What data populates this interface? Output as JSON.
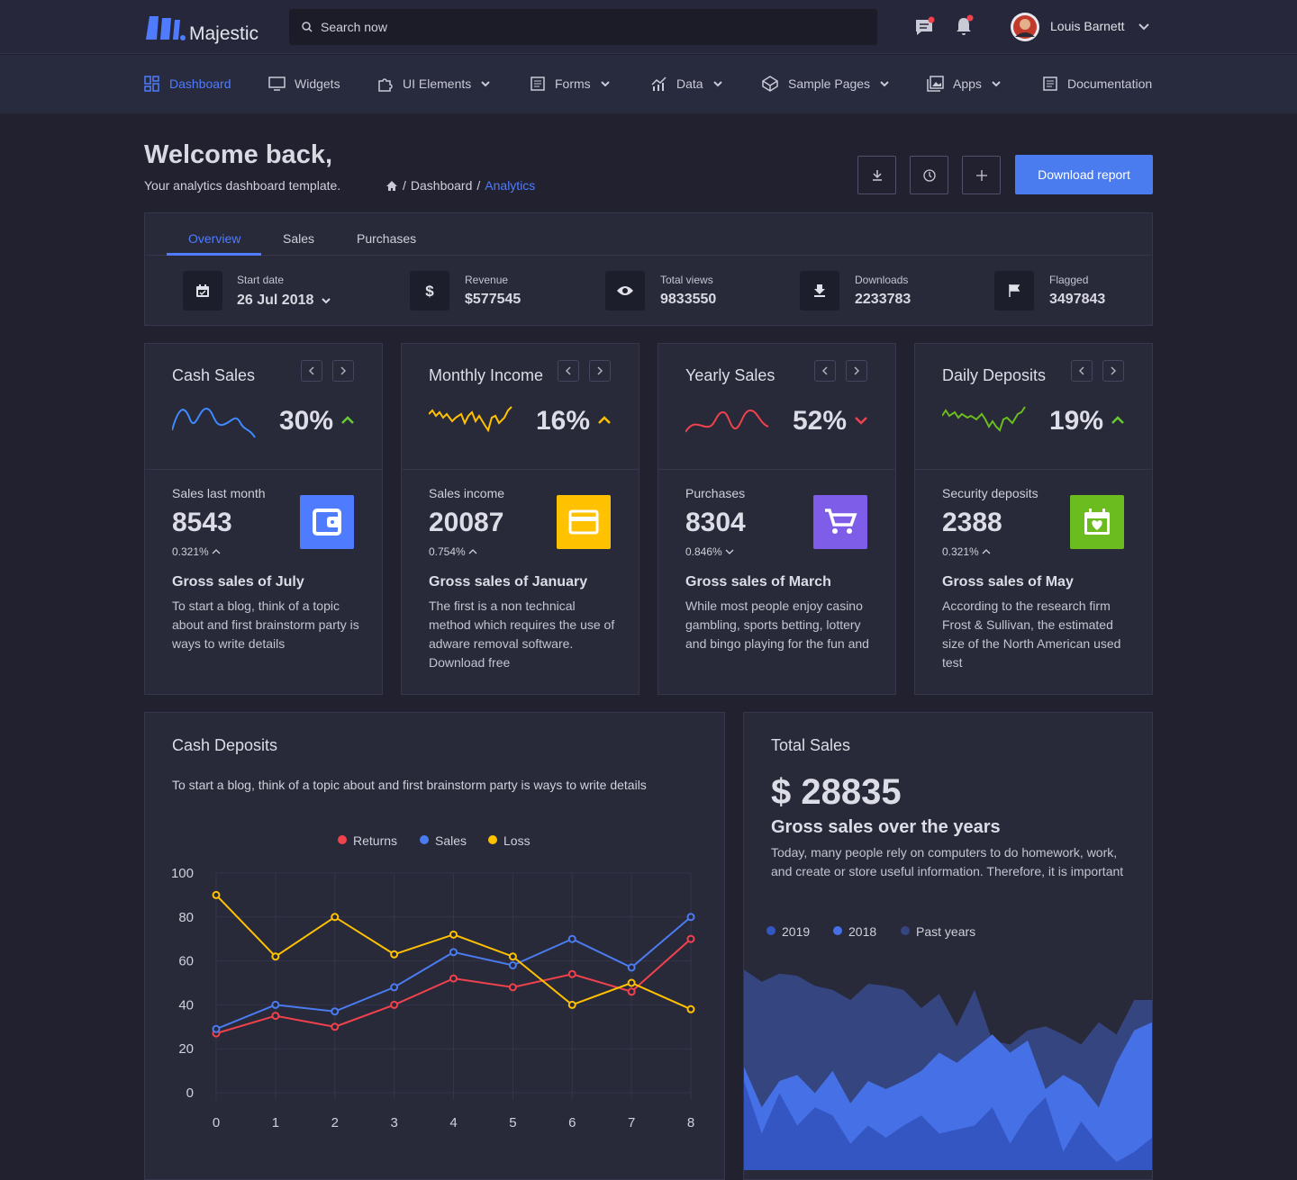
{
  "header": {
    "brand": "Majestic",
    "search_placeholder": "Search now",
    "user_name": "Louis Barnett"
  },
  "nav": [
    "Dashboard",
    "Widgets",
    "UI Elements",
    "Forms",
    "Data",
    "Sample Pages",
    "Apps",
    "Documentation"
  ],
  "page": {
    "title": "Welcome back,",
    "subtitle": "Your analytics dashboard template.",
    "breadcrumb": [
      "Dashboard",
      "Analytics"
    ],
    "button": "Download report"
  },
  "tabs": [
    "Overview",
    "Sales",
    "Purchases"
  ],
  "stats": [
    {
      "label": "Start date",
      "value": "26 Jul 2018"
    },
    {
      "label": "Revenue",
      "value": "$577545"
    },
    {
      "label": "Total views",
      "value": "9833550"
    },
    {
      "label": "Downloads",
      "value": "2233783"
    },
    {
      "label": "Flagged",
      "value": "3497843"
    }
  ],
  "cards": [
    {
      "title": "Cash Sales",
      "percent": "30%",
      "trend": "up",
      "trend_color": "#66cc33",
      "color": "#3d8bff",
      "metric_label": "Sales last month",
      "metric_value": "8543",
      "change": "0.321%",
      "change_trend": "up",
      "heading": "Gross sales of July",
      "text": "To start a blog, think of a topic about and first brainstorm party is ways to write details"
    },
    {
      "title": "Monthly Income",
      "percent": "16%",
      "trend": "up",
      "trend_color": "#ffc100",
      "color": "#ffc100",
      "metric_label": "Sales income",
      "metric_value": "20087",
      "change": "0.754%",
      "change_trend": "up",
      "heading": "Gross sales of January",
      "text": "The first is a non technical method which requires the use of adware removal software. Download free"
    },
    {
      "title": "Yearly Sales",
      "percent": "52%",
      "trend": "down",
      "trend_color": "#f0424c",
      "color": "#f0424c",
      "metric_label": "Purchases",
      "metric_value": "8304",
      "change": "0.846%",
      "change_trend": "down",
      "heading": "Gross sales of March",
      "text": "While most people enjoy casino gambling, sports betting, lottery and bingo playing for the fun and"
    },
    {
      "title": "Daily Deposits",
      "percent": "19%",
      "trend": "up",
      "trend_color": "#66cc33",
      "color": "#6bbd1f",
      "metric_label": "Security deposits",
      "metric_value": "2388",
      "change": "0.321%",
      "change_trend": "up",
      "heading": "Gross sales of May",
      "text": "According to the research firm Frost & Sullivan, the estimated size of the North American used test"
    }
  ],
  "chart_data": [
    {
      "type": "line",
      "title": "Cash Deposits",
      "subtitle": "To start a blog, think of a topic about and first brainstorm party is ways to write details",
      "x": [
        0,
        1,
        2,
        3,
        4,
        5,
        6,
        7,
        8
      ],
      "xlim": [
        0,
        8
      ],
      "xticks": [
        0,
        1,
        2,
        3,
        4,
        5,
        6,
        7,
        8
      ],
      "ylim": [
        0,
        100
      ],
      "yticks": [
        0,
        20,
        40,
        60,
        80,
        100
      ],
      "grid": true,
      "legend": "top",
      "series": [
        {
          "name": "Returns",
          "color": "#f0424c",
          "values": [
            27,
            35,
            30,
            40,
            52,
            48,
            54,
            46,
            70
          ]
        },
        {
          "name": "Sales",
          "color": "#4a7cf0",
          "values": [
            29,
            40,
            37,
            48,
            64,
            58,
            70,
            57,
            80
          ]
        },
        {
          "name": "Loss",
          "color": "#ffc100",
          "values": [
            90,
            62,
            80,
            63,
            72,
            62,
            40,
            50,
            38
          ]
        }
      ]
    },
    {
      "type": "area",
      "title": "Total Sales",
      "value_text": "$ 28835",
      "subtitle": "Gross sales over the years",
      "description": "Today, many people rely on computers to do homework, work, and create or store useful information. Therefore, it is important",
      "series": [
        {
          "name": "2019",
          "color": "#3356c2",
          "values": [
            44,
            18,
            38,
            22,
            31,
            27,
            13,
            22,
            16,
            22,
            27,
            18,
            20,
            22,
            31,
            13,
            27,
            36,
            9,
            24,
            13,
            4,
            9,
            16
          ]
        },
        {
          "name": "2018",
          "color": "#4670e6",
          "values": [
            51,
            31,
            44,
            47,
            38,
            49,
            33,
            44,
            40,
            44,
            49,
            58,
            53,
            60,
            67,
            58,
            64,
            40,
            47,
            42,
            31,
            53,
            69,
            73
          ]
        },
        {
          "name": "Past years",
          "color": "#34457f",
          "values": [
            99,
            93,
            97,
            96,
            91,
            89,
            84,
            92,
            91,
            89,
            80,
            87,
            71,
            89,
            64,
            62,
            69,
            71,
            67,
            62,
            73,
            67,
            84,
            84
          ]
        }
      ]
    }
  ]
}
